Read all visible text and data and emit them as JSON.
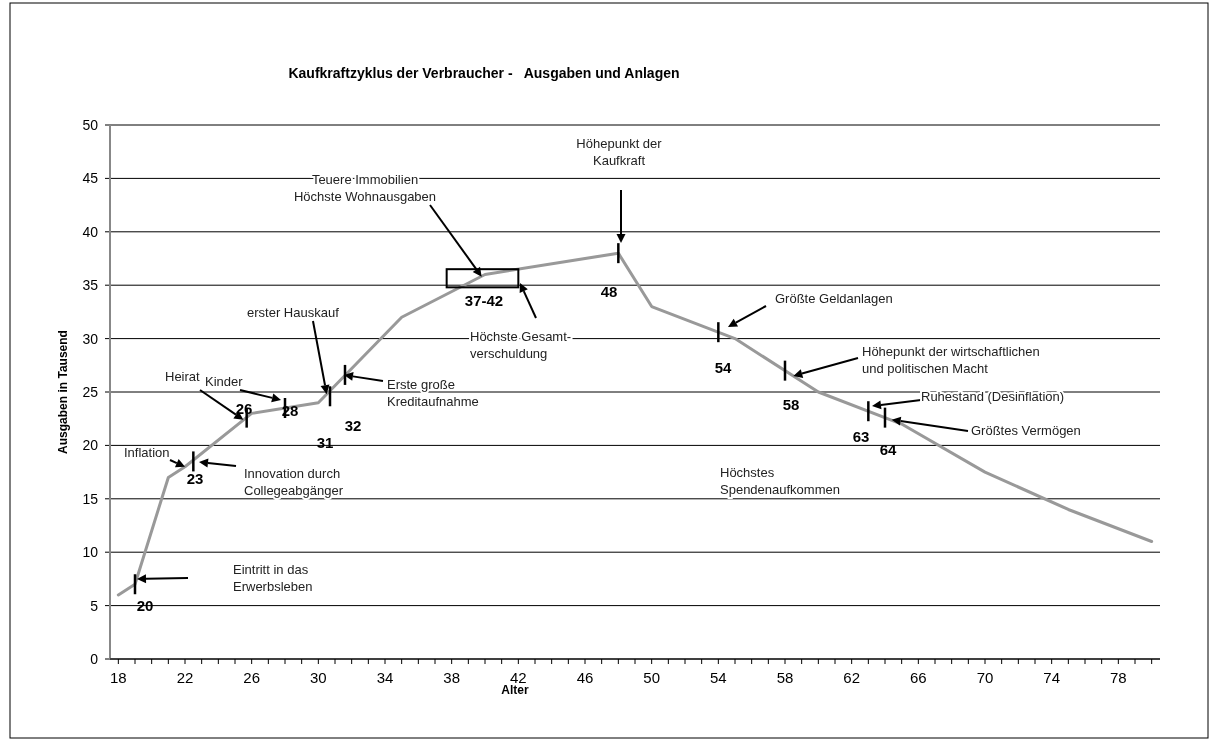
{
  "chart_data": {
    "type": "line",
    "title": "Kaufkraftzyklus der Verbraucher -   Ausgaben und Anlagen",
    "xlabel": "Alter",
    "ylabel": "Ausgaben in Tausend",
    "x": [
      18,
      19,
      21,
      22,
      26,
      30,
      35,
      40,
      48,
      50,
      55,
      60,
      65,
      70,
      75,
      80
    ],
    "series": [
      {
        "color": "#999999",
        "values": [
          6,
          7,
          17,
          18,
          23,
          24,
          32,
          36,
          38,
          33,
          30,
          25,
          22,
          17.5,
          14,
          11
        ]
      }
    ],
    "xlim": [
      17.5,
      80.5
    ],
    "xticks": [
      18,
      {
        "value": 19,
        "label": null
      },
      {
        "value": 20,
        "label": null
      },
      {
        "value": 21,
        "label": null
      },
      22,
      {
        "value": 23,
        "label": null
      },
      {
        "value": 24,
        "label": null
      },
      {
        "value": 25,
        "label": null
      },
      26,
      {
        "value": 27,
        "label": null
      },
      {
        "value": 28,
        "label": null
      },
      {
        "value": 29,
        "label": null
      },
      30,
      {
        "value": 31,
        "label": null
      },
      {
        "value": 32,
        "label": null
      },
      {
        "value": 33,
        "label": null
      },
      34,
      {
        "value": 35,
        "label": null
      },
      {
        "value": 36,
        "label": null
      },
      {
        "value": 37,
        "label": null
      },
      38,
      {
        "value": 39,
        "label": null
      },
      {
        "value": 40,
        "label": null
      },
      {
        "value": 41,
        "label": null
      },
      42,
      {
        "value": 43,
        "label": null
      },
      {
        "value": 44,
        "label": null
      },
      {
        "value": 45,
        "label": null
      },
      46,
      {
        "value": 47,
        "label": null
      },
      {
        "value": 48,
        "label": null
      },
      {
        "value": 49,
        "label": null
      },
      50,
      {
        "value": 51,
        "label": null
      },
      {
        "value": 52,
        "label": null
      },
      {
        "value": 53,
        "label": null
      },
      54,
      {
        "value": 55,
        "label": null
      },
      {
        "value": 56,
        "label": null
      },
      {
        "value": 57,
        "label": null
      },
      58,
      {
        "value": 59,
        "label": null
      },
      {
        "value": 60,
        "label": null
      },
      {
        "value": 61,
        "label": null
      },
      62,
      {
        "value": 63,
        "label": null
      },
      {
        "value": 64,
        "label": null
      },
      {
        "value": 65,
        "label": null
      },
      66,
      {
        "value": 67,
        "label": null
      },
      {
        "value": 68,
        "label": null
      },
      {
        "value": 69,
        "label": null
      },
      70,
      {
        "value": 71,
        "label": null
      },
      {
        "value": 72,
        "label": null
      },
      {
        "value": 73,
        "label": null
      },
      74,
      {
        "value": 75,
        "label": null
      },
      {
        "value": 76,
        "label": null
      },
      {
        "value": 77,
        "label": null
      },
      78,
      {
        "value": 79,
        "label": null
      },
      {
        "value": 80,
        "label": null
      }
    ],
    "ylim": [
      0,
      50
    ],
    "yticks": [
      0,
      5,
      10,
      15,
      20,
      25,
      30,
      35,
      40,
      45,
      50
    ],
    "grid": "y",
    "marker": "none",
    "line_style": "solid",
    "annotations": [
      "Eintritt in das Erwerbsleben",
      {
        "text": "Inflation",
        "x": 22,
        "y": 18
      },
      "Innovation durch Collegeabgänger",
      {
        "text": "Heirat",
        "x": 25.5,
        "y": 22.4
      },
      "Kinder",
      {
        "text": "erster Hauskauf",
        "x": 30.5,
        "y": 24.8
      },
      "Erste große Kreditaufnahme",
      {
        "text": "Teuere Immobilien Höchste Wohnausgaben",
        "x": 39.8,
        "y": 35.8
      },
      "Höchste Gesamt-verschuldung",
      "Höhepunkt der Kaufkraft",
      "Größte Geldanlagen",
      {
        "text": "Höhepunkt der wirtschaftlichen und politischen Macht",
        "x": 58.5,
        "y": 26.5
      },
      "Ruhestand (Desinflation)",
      {
        "text": "Größtes Vermögen",
        "x": 64.4,
        "y": 22.4
      },
      "Höchstes Spendenaufkommen",
      {
        "text": "20",
        "x": 19,
        "y": 7
      },
      {
        "text": "23",
        "x": 22.5,
        "y": 18.5
      },
      {
        "text": "26",
        "x": 25.7,
        "y": 22.6
      },
      {
        "text": "28",
        "x": 28,
        "y": 23.5
      },
      {
        "text": "31",
        "x": 30.7,
        "y": 24.6
      },
      {
        "text": "32",
        "x": 31.6,
        "y": 26.6
      },
      {
        "text": "37-42",
        "x": 40,
        "y": 36
      },
      {
        "text": "48",
        "x": 48,
        "y": 38
      },
      {
        "text": "54",
        "x": 54,
        "y": 30.6
      },
      {
        "text": "58",
        "x": 58,
        "y": 27
      },
      {
        "text": "63",
        "x": 63,
        "y": 23.2
      },
      {
        "text": "64",
        "x": 64,
        "y": 22.6
      }
    ]
  }
}
